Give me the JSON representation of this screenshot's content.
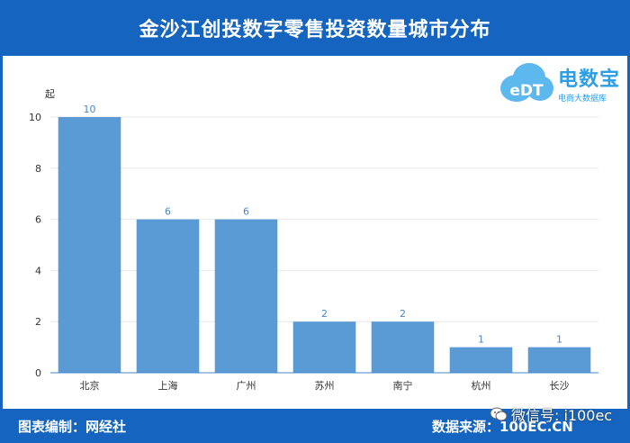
{
  "title": "金沙江创投数字零售投资数量城市分布",
  "logo": {
    "name": "电数宝",
    "sub": "电商大数据库",
    "mark": "eDT"
  },
  "footer": {
    "left": "图表编制：网经社",
    "right": "数据来源：100EC.CN"
  },
  "watermark": {
    "text": "微信号: i100ec",
    "icon": "wechat-icon"
  },
  "colors": {
    "header": "#1565c0",
    "bar": "#5b9bd5",
    "label": "#4a86c5"
  },
  "chart_data": {
    "type": "bar",
    "categories": [
      "北京",
      "上海",
      "广州",
      "苏州",
      "南宁",
      "杭州",
      "长沙"
    ],
    "values": [
      10,
      6,
      6,
      2,
      2,
      1,
      1
    ],
    "ylabel": "起",
    "ylim": [
      0,
      10
    ],
    "yticks": [
      0,
      2,
      4,
      6,
      8,
      10
    ],
    "grid": true
  }
}
